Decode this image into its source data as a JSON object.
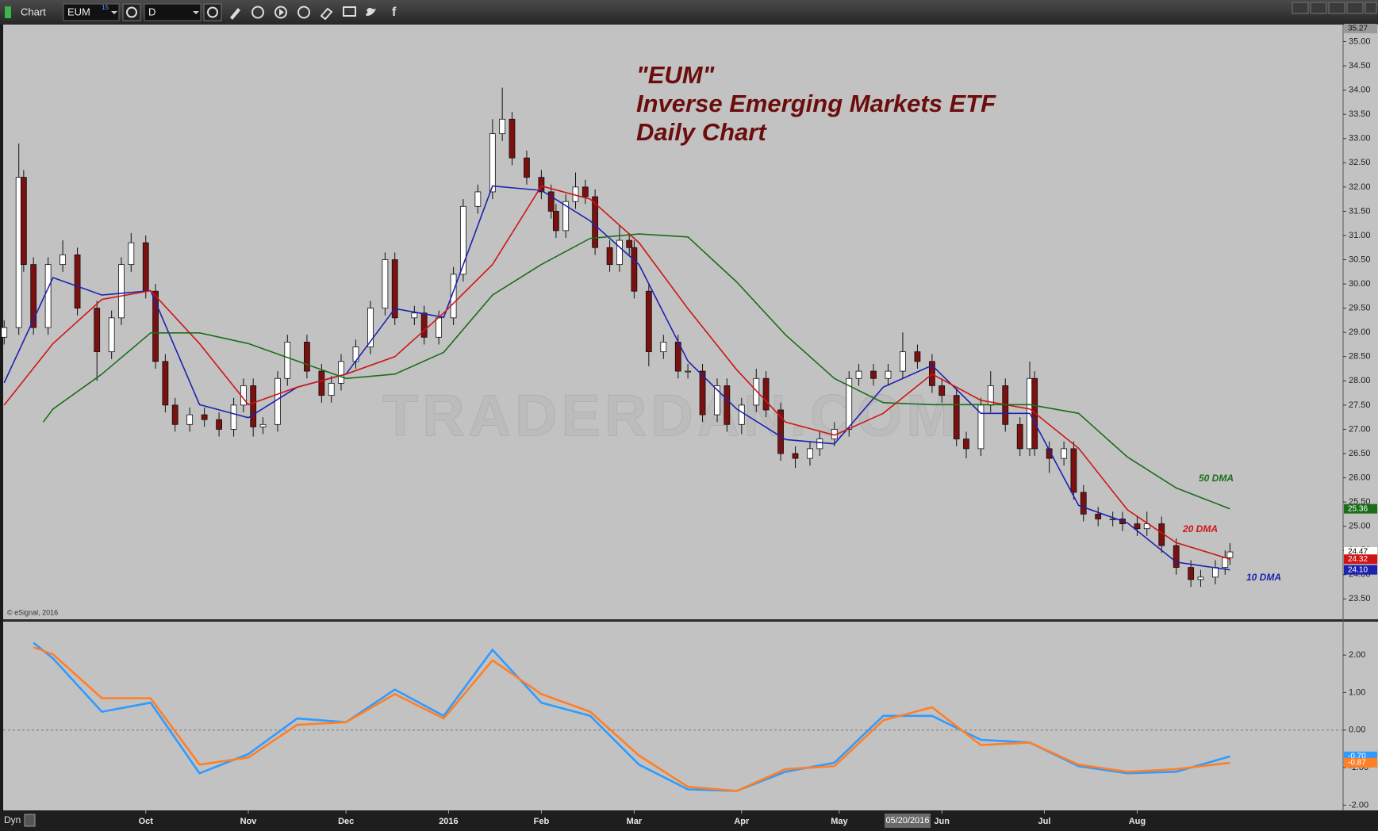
{
  "toolbar": {
    "title": "Chart",
    "symbol": "EUM",
    "symbol_badge": "15",
    "interval": "D"
  },
  "footer": {
    "mode": "Dyn",
    "cursor_date": "05/20/2016"
  },
  "chart_data": [
    {
      "type": "candlestick",
      "title": [
        "\"EUM\"",
        "Inverse Emerging Markets ETF",
        "Daily Chart"
      ],
      "credit": "© eSignal, 2016",
      "watermark": "TRADERDAN.COM",
      "xlim": [
        -0.2,
        274
      ],
      "ylim": [
        23.08,
        35.27
      ],
      "yticks": [
        {
          "value": 23.5,
          "label": "23.50"
        },
        {
          "value": 24,
          "label": "24.00"
        },
        {
          "value": 24.5,
          "label": "24.50"
        },
        {
          "value": 25,
          "label": "25.00"
        },
        {
          "value": 25.5,
          "label": "25.50"
        },
        {
          "value": 26,
          "label": "26.00"
        },
        {
          "value": 26.5,
          "label": "26.50"
        },
        {
          "value": 27,
          "label": "27.00"
        },
        {
          "value": 27.5,
          "label": "27.50"
        },
        {
          "value": 28,
          "label": "28.00"
        },
        {
          "value": 28.5,
          "label": "28.50"
        },
        {
          "value": 29,
          "label": "29.00"
        },
        {
          "value": 29.5,
          "label": "29.50"
        },
        {
          "value": 30,
          "label": "30.00"
        },
        {
          "value": 30.5,
          "label": "30.50"
        },
        {
          "value": 31,
          "label": "31.00"
        },
        {
          "value": 31.5,
          "label": "31.50"
        },
        {
          "value": 32,
          "label": "32.00"
        },
        {
          "value": 32.5,
          "label": "32.50"
        },
        {
          "value": 33,
          "label": "33.00"
        },
        {
          "value": 33.5,
          "label": "33.50"
        },
        {
          "value": 34,
          "label": "34.00"
        },
        {
          "value": 34.5,
          "label": "34.50"
        },
        {
          "value": 35,
          "label": "35.00"
        }
      ],
      "up_color": "#ffffff",
      "down_color": "#7a1010",
      "x": [
        0,
        3,
        4,
        6,
        9,
        12,
        15,
        19,
        22,
        24,
        26,
        29,
        31,
        33,
        35,
        38,
        41,
        44,
        47,
        49,
        51,
        53,
        56,
        58,
        62,
        65,
        67,
        69,
        72,
        75,
        78,
        80,
        84,
        86,
        89,
        92,
        94,
        97,
        100,
        102,
        104,
        107,
        110,
        112,
        113,
        115,
        117,
        119,
        121,
        124,
        126,
        128,
        129,
        132,
        135,
        138,
        140,
        143,
        146,
        148,
        151,
        154,
        156,
        159,
        162,
        165,
        167,
        170,
        173,
        175,
        178,
        181,
        184,
        187,
        190,
        192,
        195,
        197,
        200,
        202,
        205,
        208,
        210,
        211,
        214,
        217,
        219,
        221,
        224,
        227,
        229,
        232,
        234,
        237,
        240,
        243,
        245,
        248,
        250,
        251
      ],
      "open": [
        28.9,
        29.1,
        32.2,
        30.4,
        29.1,
        30.4,
        30.6,
        29.5,
        28.6,
        29.3,
        30.4,
        30.85,
        29.85,
        28.4,
        27.5,
        27.1,
        27.3,
        27.2,
        27.0,
        27.5,
        27.9,
        27.05,
        27.1,
        28.05,
        28.8,
        28.2,
        27.7,
        27.95,
        28.4,
        28.7,
        29.5,
        30.5,
        29.3,
        29.4,
        28.9,
        29.3,
        30.2,
        31.6,
        31.9,
        33.1,
        33.4,
        32.6,
        32.2,
        31.9,
        31.5,
        31.1,
        31.7,
        32.0,
        31.8,
        30.75,
        30.4,
        30.9,
        30.75,
        29.85,
        28.6,
        28.8,
        28.2,
        28.2,
        27.3,
        27.9,
        27.1,
        27.5,
        28.05,
        27.4,
        26.5,
        26.4,
        26.6,
        26.8,
        27.0,
        28.05,
        28.2,
        28.05,
        28.2,
        28.6,
        28.4,
        27.9,
        27.7,
        26.8,
        26.6,
        27.5,
        27.9,
        27.1,
        26.6,
        28.05,
        26.6,
        26.4,
        26.6,
        25.7,
        25.25,
        25.15,
        25.15,
        25.05,
        24.95,
        25.05,
        24.6,
        24.15,
        23.9,
        23.95,
        24.15,
        24.35
      ],
      "high": [
        29.25,
        32.9,
        32.35,
        30.55,
        30.55,
        30.9,
        30.75,
        29.65,
        29.45,
        30.55,
        31.05,
        31.0,
        30.0,
        28.55,
        27.65,
        27.45,
        27.45,
        27.35,
        27.65,
        28.05,
        28.05,
        27.25,
        28.2,
        28.95,
        28.95,
        28.35,
        28.1,
        28.55,
        28.85,
        29.65,
        30.65,
        30.65,
        29.55,
        29.55,
        29.45,
        30.35,
        31.75,
        32.05,
        33.4,
        34.05,
        33.55,
        32.75,
        32.35,
        32.05,
        31.65,
        31.85,
        32.3,
        32.15,
        31.95,
        30.9,
        31.2,
        31.05,
        30.9,
        30.0,
        28.95,
        28.95,
        28.35,
        28.35,
        28.05,
        28.05,
        27.65,
        28.25,
        28.2,
        27.55,
        26.65,
        26.75,
        26.95,
        27.15,
        28.2,
        28.35,
        28.35,
        28.35,
        29.0,
        28.75,
        28.55,
        28.05,
        27.85,
        26.95,
        27.65,
        28.2,
        28.05,
        27.25,
        28.4,
        28.2,
        26.75,
        26.75,
        26.75,
        25.85,
        25.4,
        25.3,
        25.3,
        25.2,
        25.3,
        25.2,
        24.75,
        24.3,
        24.1,
        24.3,
        24.5,
        24.65
      ],
      "low": [
        28.75,
        28.95,
        30.25,
        28.95,
        28.95,
        30.25,
        29.35,
        28.0,
        28.45,
        29.15,
        30.25,
        29.7,
        28.25,
        27.35,
        26.95,
        26.95,
        27.05,
        26.85,
        26.85,
        27.35,
        26.85,
        26.9,
        26.95,
        27.9,
        28.05,
        27.55,
        27.55,
        27.8,
        28.25,
        28.55,
        29.35,
        29.15,
        29.15,
        28.75,
        28.75,
        29.15,
        30.05,
        31.45,
        31.75,
        32.95,
        32.45,
        32.05,
        31.75,
        31.35,
        30.95,
        30.95,
        31.55,
        31.65,
        30.6,
        30.25,
        30.25,
        30.6,
        29.7,
        28.3,
        28.45,
        28.05,
        28.05,
        27.15,
        27.15,
        26.95,
        26.9,
        27.35,
        27.25,
        26.35,
        26.2,
        26.25,
        26.45,
        26.65,
        26.85,
        27.9,
        27.9,
        27.9,
        28.05,
        28.25,
        27.75,
        27.55,
        26.65,
        26.4,
        26.45,
        27.35,
        26.95,
        26.45,
        26.45,
        26.45,
        26.1,
        26.25,
        25.55,
        25.1,
        25.0,
        25.0,
        24.9,
        24.8,
        24.8,
        24.45,
        24.0,
        23.75,
        23.75,
        23.8,
        24.0,
        24.2
      ],
      "close": [
        29.1,
        32.2,
        30.4,
        29.1,
        30.4,
        30.6,
        29.5,
        28.6,
        29.3,
        30.4,
        30.85,
        29.85,
        28.4,
        27.5,
        27.1,
        27.3,
        27.2,
        27.0,
        27.5,
        27.9,
        27.05,
        27.1,
        28.05,
        28.8,
        28.2,
        27.7,
        27.95,
        28.4,
        28.7,
        29.5,
        30.5,
        29.3,
        29.4,
        28.9,
        29.3,
        30.2,
        31.6,
        31.9,
        33.1,
        33.4,
        32.6,
        32.2,
        31.9,
        31.5,
        31.1,
        31.7,
        32.0,
        31.8,
        30.75,
        30.4,
        30.9,
        30.75,
        29.85,
        28.6,
        28.8,
        28.2,
        28.2,
        27.3,
        27.9,
        27.1,
        27.5,
        28.05,
        27.4,
        26.5,
        26.4,
        26.6,
        26.8,
        27.0,
        28.05,
        28.2,
        28.05,
        28.2,
        28.6,
        28.4,
        27.9,
        27.7,
        26.8,
        26.6,
        27.5,
        27.9,
        27.1,
        26.6,
        28.05,
        26.6,
        26.4,
        26.6,
        25.7,
        25.25,
        25.15,
        25.15,
        25.05,
        24.95,
        25.05,
        24.6,
        24.15,
        23.9,
        23.95,
        24.15,
        24.35,
        24.47
      ],
      "series": [
        {
          "name": "10 DMA",
          "color": "#1c22b0",
          "x": [
            0,
            10,
            20,
            30,
            40,
            50,
            60,
            70,
            80,
            90,
            100,
            110,
            120,
            130,
            140,
            150,
            160,
            170,
            180,
            190,
            200,
            210,
            220,
            230,
            240,
            251
          ],
          "values": [
            27.96,
            30.13,
            29.77,
            29.86,
            27.51,
            27.24,
            27.87,
            28.14,
            29.49,
            29.31,
            32.02,
            31.93,
            31.3,
            30.4,
            28.41,
            27.42,
            26.79,
            26.7,
            27.87,
            28.32,
            27.33,
            27.33,
            25.43,
            25.07,
            24.26,
            24.1
          ],
          "value_labels": [
            null,
            null,
            null,
            null,
            null,
            null,
            null,
            null,
            null,
            null,
            null,
            null,
            null,
            null,
            null,
            null,
            null,
            null,
            null,
            null,
            null,
            null,
            null,
            null,
            null,
            "24.10"
          ]
        },
        {
          "name": "20 DMA",
          "color": "#d01515",
          "x": [
            0,
            10,
            20,
            30,
            40,
            50,
            60,
            70,
            80,
            90,
            100,
            110,
            120,
            130,
            140,
            150,
            160,
            170,
            180,
            190,
            200,
            210,
            220,
            230,
            240,
            251
          ],
          "values": [
            27.5,
            28.77,
            29.68,
            29.86,
            28.77,
            27.51,
            27.87,
            28.14,
            28.5,
            29.4,
            30.4,
            32.02,
            31.75,
            30.85,
            29.49,
            28.23,
            27.15,
            26.88,
            27.33,
            28.14,
            27.6,
            27.42,
            26.61,
            25.34,
            24.66,
            24.32
          ]
        },
        {
          "name": "50 DMA",
          "color": "#1a6e1a",
          "x": [
            8,
            10,
            20,
            30,
            40,
            50,
            60,
            70,
            80,
            90,
            100,
            110,
            120,
            130,
            140,
            150,
            160,
            170,
            180,
            190,
            200,
            210,
            220,
            230,
            240,
            251
          ],
          "values": [
            27.15,
            27.42,
            28.14,
            28.99,
            28.99,
            28.77,
            28.41,
            28.05,
            28.14,
            28.59,
            29.77,
            30.4,
            30.94,
            31.03,
            30.97,
            30.04,
            28.95,
            28.05,
            27.55,
            27.51,
            27.51,
            27.51,
            27.33,
            26.43,
            25.79,
            25.36
          ]
        }
      ]
    },
    {
      "type": "line",
      "xlim": [
        -0.2,
        274
      ],
      "ylim": [
        -2.14,
        2.89
      ],
      "xticks": [
        {
          "value": 29,
          "label": "Oct"
        },
        {
          "value": 50,
          "label": "Nov"
        },
        {
          "value": 70,
          "label": "Dec"
        },
        {
          "value": 91,
          "label": "2016"
        },
        {
          "value": 110,
          "label": "Feb"
        },
        {
          "value": 129,
          "label": "Mar"
        },
        {
          "value": 151,
          "label": "Apr"
        },
        {
          "value": 171,
          "label": "May"
        },
        {
          "value": 192,
          "label": "Jun"
        },
        {
          "value": 213,
          "label": "Jul"
        },
        {
          "value": 232,
          "label": "Aug"
        }
      ],
      "yticks": [
        {
          "value": -2,
          "label": "-2.00"
        },
        {
          "value": -1,
          "label": "-1.00"
        },
        {
          "value": 0,
          "label": "0.00"
        },
        {
          "value": 1,
          "label": "1.00"
        },
        {
          "value": 2,
          "label": "2.00"
        }
      ],
      "series": [
        {
          "color": "#2f9bff",
          "x": [
            6,
            10,
            20,
            30,
            40,
            50,
            60,
            70,
            80,
            90,
            100,
            110,
            120,
            130,
            140,
            150,
            160,
            170,
            180,
            190,
            200,
            210,
            220,
            230,
            240,
            251
          ],
          "values": [
            2.33,
            1.91,
            0.49,
            0.73,
            -1.15,
            -0.64,
            0.31,
            0.21,
            1.08,
            0.38,
            2.14,
            0.73,
            0.38,
            -0.92,
            -1.58,
            -1.62,
            -1.11,
            -0.87,
            0.38,
            0.38,
            -0.26,
            -0.33,
            -0.96,
            -1.15,
            -1.11,
            -0.7
          ],
          "value_labels": [
            null,
            null,
            null,
            null,
            null,
            null,
            null,
            null,
            null,
            null,
            null,
            null,
            null,
            null,
            null,
            null,
            null,
            null,
            null,
            null,
            null,
            null,
            null,
            null,
            null,
            "-0.70"
          ]
        },
        {
          "color": "#ff7f27",
          "x": [
            6,
            10,
            20,
            30,
            40,
            50,
            60,
            70,
            80,
            90,
            100,
            110,
            120,
            130,
            140,
            150,
            160,
            170,
            180,
            190,
            200,
            210,
            220,
            230,
            240,
            251
          ],
          "values": [
            2.21,
            2.02,
            0.85,
            0.85,
            -0.92,
            -0.73,
            0.14,
            0.21,
            0.96,
            0.31,
            1.86,
            0.96,
            0.49,
            -0.68,
            -1.51,
            -1.62,
            -1.04,
            -0.96,
            0.26,
            0.61,
            -0.4,
            -0.33,
            -0.92,
            -1.11,
            -1.04,
            -0.87
          ],
          "value_labels": [
            null,
            null,
            null,
            null,
            null,
            null,
            null,
            null,
            null,
            null,
            null,
            null,
            null,
            null,
            null,
            null,
            null,
            null,
            null,
            null,
            null,
            null,
            null,
            null,
            null,
            "-0.87"
          ]
        }
      ]
    }
  ]
}
